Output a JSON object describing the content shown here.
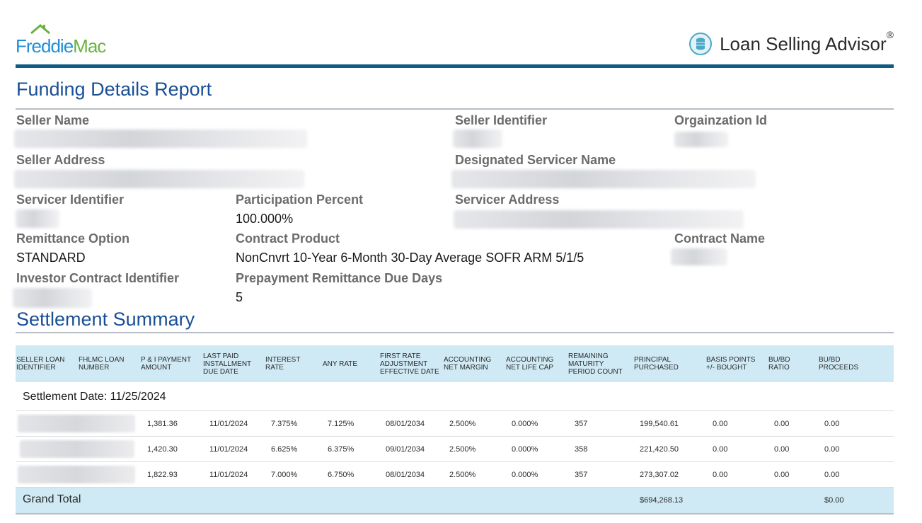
{
  "header": {
    "logo_part1": "Freddie",
    "logo_part2": "Mac",
    "app_name": "Loan Selling Advisor",
    "registered_mark": "®"
  },
  "report": {
    "title": "Funding Details Report",
    "fields": {
      "seller_name_label": "Seller Name",
      "seller_identifier_label": "Seller Identifier",
      "organization_id_label": "Orgainzation Id",
      "seller_address_label": "Seller Address",
      "designated_servicer_label": "Designated Servicer Name",
      "servicer_identifier_label": "Servicer Identifier",
      "participation_percent_label": "Participation Percent",
      "participation_percent_value": "100.000%",
      "servicer_address_label": "Servicer Address",
      "remittance_option_label": "Remittance Option",
      "remittance_option_value": "STANDARD",
      "contract_product_label": "Contract Product",
      "contract_product_value": "NonCnvrt 10-Year 6-Month 30-Day Average SOFR ARM 5/1/5",
      "contract_name_label": "Contract Name",
      "investor_contract_label": "Investor Contract Identifier",
      "prepayment_label": "Prepayment Remittance Due Days",
      "prepayment_value": "5"
    }
  },
  "settlement": {
    "title": "Settlement Summary",
    "columns": [
      "SELLER LOAN IDENTIFIER",
      "FHLMC LOAN NUMBER",
      "P & I PAYMENT AMOUNT",
      "LAST PAID INSTALLMENT DUE DATE",
      "INTEREST RATE",
      "ANY RATE",
      "FIRST RATE ADJUSTMENT EFFECTIVE DATE",
      "ACCOUNTING NET MARGIN",
      "ACCOUNTING NET LIFE CAP",
      "REMAINING MATURITY PERIOD COUNT",
      "PRINCIPAL PURCHASED",
      "BASIS POINTS +/- BOUGHT",
      "BU/BD RATIO",
      "BU/BD PROCEEDS"
    ],
    "settlement_date_text": "Settlement Date: 11/25/2024",
    "rows": [
      {
        "pi": "1,381.36",
        "last_paid": "11/01/2024",
        "rate": "7.375%",
        "any_rate": "7.125%",
        "first_adj": "08/01/2034",
        "margin": "2.500%",
        "life_cap": "0.000%",
        "remaining": "357",
        "principal": "199,540.61",
        "bp": "0.00",
        "ratio": "0.00",
        "proceeds": "0.00"
      },
      {
        "pi": "1,420.30",
        "last_paid": "11/01/2024",
        "rate": "6.625%",
        "any_rate": "6.375%",
        "first_adj": "09/01/2034",
        "margin": "2.500%",
        "life_cap": "0.000%",
        "remaining": "358",
        "principal": "221,420.50",
        "bp": "0.00",
        "ratio": "0.00",
        "proceeds": "0.00"
      },
      {
        "pi": "1,822.93",
        "last_paid": "11/01/2024",
        "rate": "7.000%",
        "any_rate": "6.750%",
        "first_adj": "08/01/2034",
        "margin": "2.500%",
        "life_cap": "0.000%",
        "remaining": "357",
        "principal": "273,307.02",
        "bp": "0.00",
        "ratio": "0.00",
        "proceeds": "0.00"
      }
    ],
    "grand_total_label": "Grand Total",
    "grand_total_principal": "$694,268.13",
    "grand_total_proceeds": "$0.00"
  },
  "colors": {
    "title_blue": "#1a4f96",
    "header_rule": "#0f5b82",
    "table_header_bg": "#cfeaf4",
    "logo_blue": "#1f8fd8",
    "logo_green": "#6ab33b"
  },
  "icons": {
    "logo_roof": "house-roof-icon",
    "app_icon": "coin-stack-icon"
  }
}
